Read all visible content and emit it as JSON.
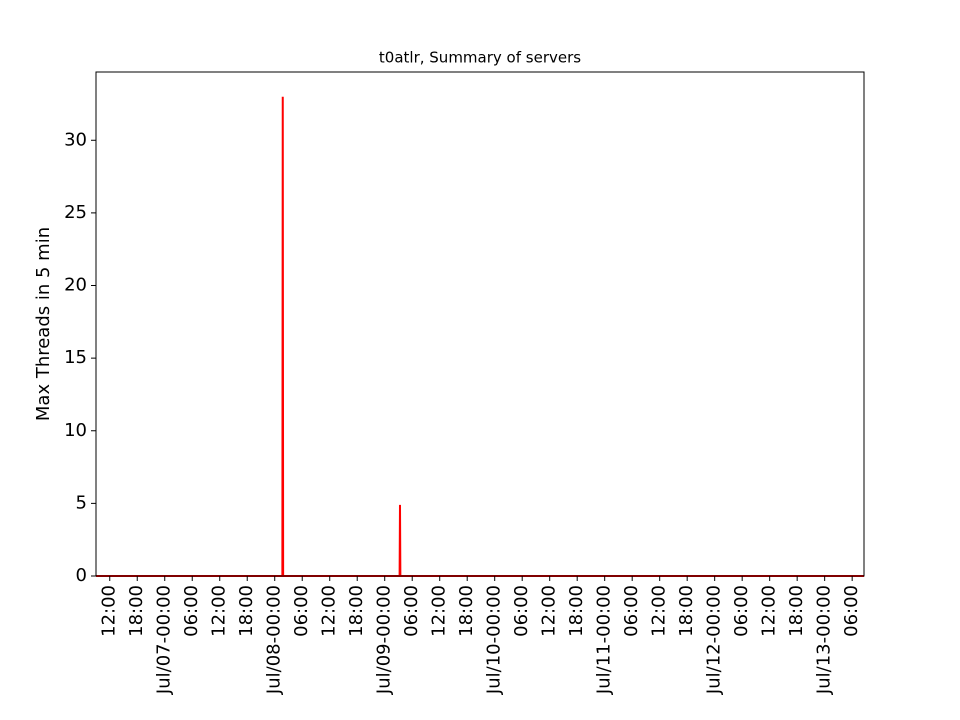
{
  "chart_data": {
    "type": "line",
    "title": "t0atlr, Summary of servers",
    "y_label": "Max Threads in 5 min",
    "x": [
      "Jul/06-09:00",
      "Jul/08-01:40",
      "Jul/08-01:45",
      "Jul/08-01:50",
      "Jul/09-03:15",
      "Jul/09-03:20",
      "Jul/09-03:25",
      "Jul/13-08:35"
    ],
    "series": [
      {
        "color": "#ff0000",
        "values": [
          0,
          0,
          33,
          0,
          0,
          4.9,
          0,
          0
        ]
      }
    ],
    "xlim": [
      "Jul/06-09:00",
      "Jul/13-08:35"
    ],
    "xticks": [
      {
        "value": "Jul/06-12:00",
        "label": "12:00"
      },
      {
        "value": "Jul/06-18:00",
        "label": "18:00"
      },
      {
        "value": "Jul/07-00:00",
        "label": "Jul/07-00:00"
      },
      {
        "value": "Jul/07-06:00",
        "label": "06:00"
      },
      {
        "value": "Jul/07-12:00",
        "label": "12:00"
      },
      {
        "value": "Jul/07-18:00",
        "label": "18:00"
      },
      {
        "value": "Jul/08-00:00",
        "label": "Jul/08-00:00"
      },
      {
        "value": "Jul/08-06:00",
        "label": "06:00"
      },
      {
        "value": "Jul/08-12:00",
        "label": "12:00"
      },
      {
        "value": "Jul/08-18:00",
        "label": "18:00"
      },
      {
        "value": "Jul/09-00:00",
        "label": "Jul/09-00:00"
      },
      {
        "value": "Jul/09-06:00",
        "label": "06:00"
      },
      {
        "value": "Jul/09-12:00",
        "label": "12:00"
      },
      {
        "value": "Jul/09-18:00",
        "label": "18:00"
      },
      {
        "value": "Jul/10-00:00",
        "label": "Jul/10-00:00"
      },
      {
        "value": "Jul/10-06:00",
        "label": "06:00"
      },
      {
        "value": "Jul/10-12:00",
        "label": "12:00"
      },
      {
        "value": "Jul/10-18:00",
        "label": "18:00"
      },
      {
        "value": "Jul/11-00:00",
        "label": "Jul/11-00:00"
      },
      {
        "value": "Jul/11-06:00",
        "label": "06:00"
      },
      {
        "value": "Jul/11-12:00",
        "label": "12:00"
      },
      {
        "value": "Jul/11-18:00",
        "label": "18:00"
      },
      {
        "value": "Jul/12-00:00",
        "label": "Jul/12-00:00"
      },
      {
        "value": "Jul/12-06:00",
        "label": "06:00"
      },
      {
        "value": "Jul/12-12:00",
        "label": "12:00"
      },
      {
        "value": "Jul/12-18:00",
        "label": "18:00"
      },
      {
        "value": "Jul/13-00:00",
        "label": "Jul/13-00:00"
      },
      {
        "value": "Jul/13-06:00",
        "label": "06:00"
      }
    ],
    "ylim": [
      0,
      34.7
    ],
    "yticks": [
      0,
      5,
      10,
      15,
      20,
      25,
      30
    ],
    "grid": false
  }
}
